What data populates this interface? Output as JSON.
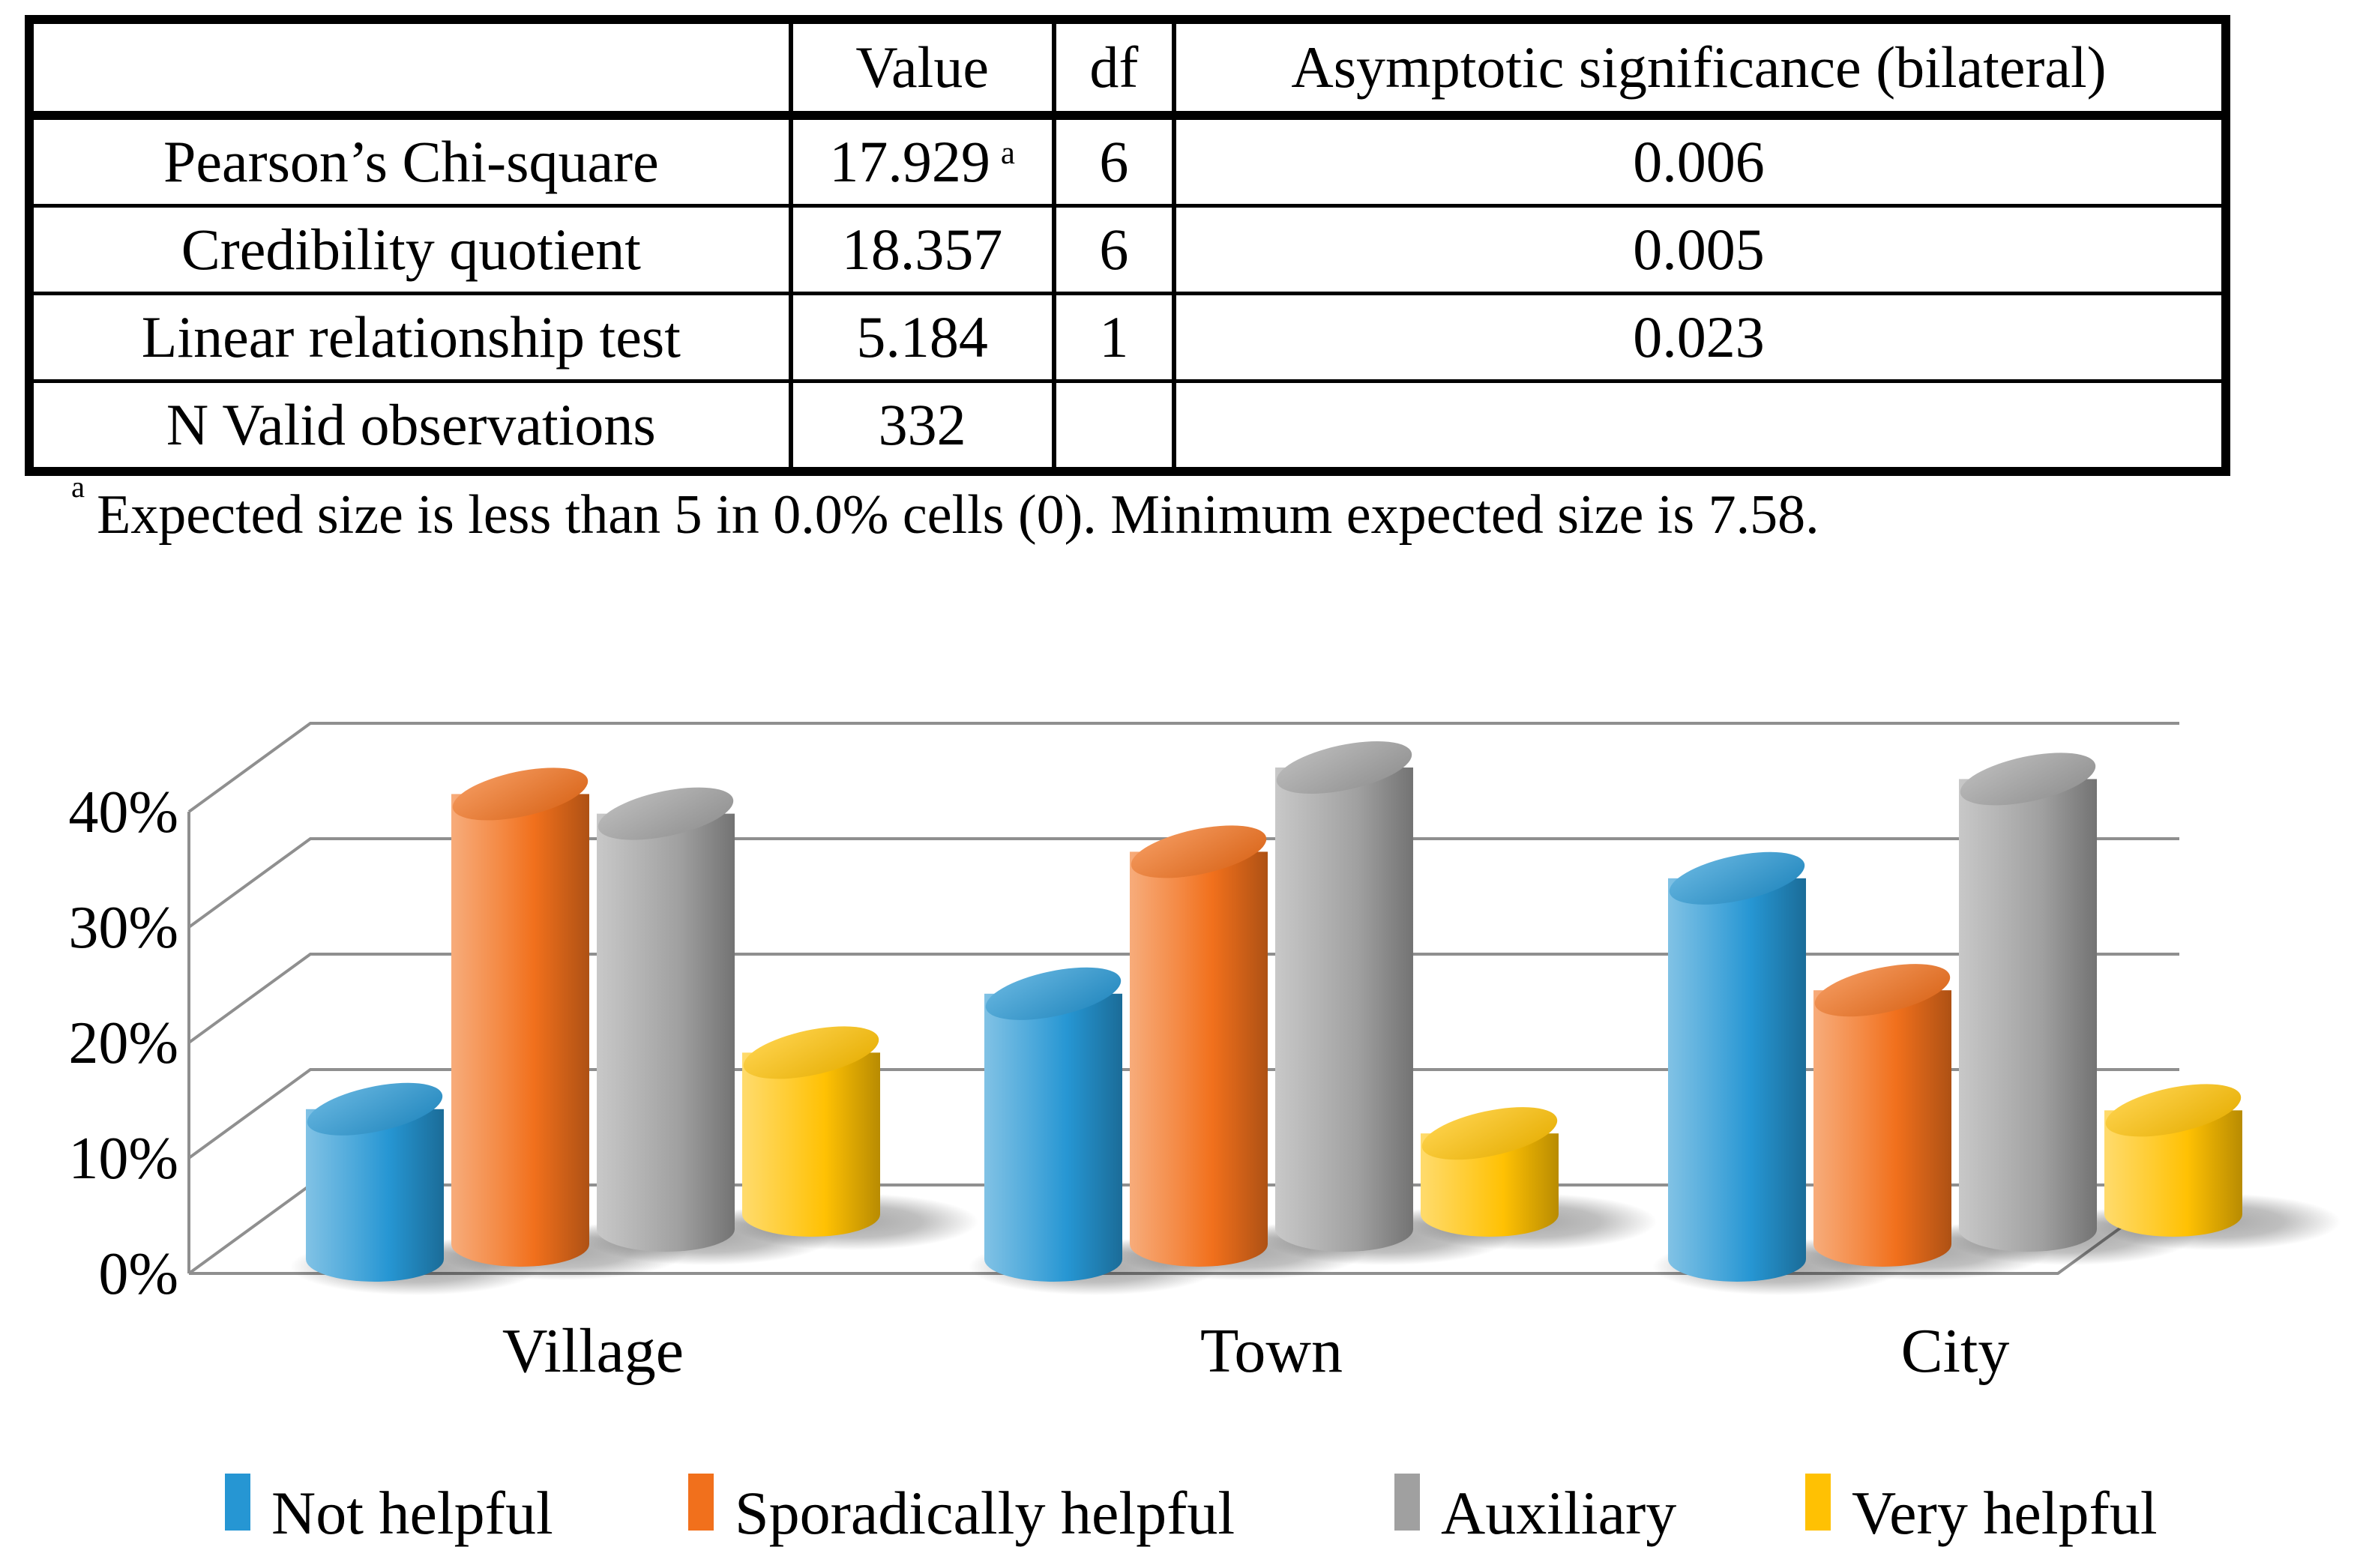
{
  "table": {
    "headers": [
      "",
      "Value",
      "df",
      "Asymptotic significance (bilateral)"
    ],
    "rows": [
      {
        "label": "Pearson’s Chi-square",
        "value": "17.929",
        "value_sup": "a",
        "df": "6",
        "sig": "0.006"
      },
      {
        "label": "Credibility quotient",
        "value": "18.357",
        "value_sup": "",
        "df": "6",
        "sig": "0.005"
      },
      {
        "label": "Linear relationship test",
        "value": "5.184",
        "value_sup": "",
        "df": "1",
        "sig": "0.023"
      },
      {
        "label": "N Valid observations",
        "value": "332",
        "value_sup": "",
        "df": "",
        "sig": ""
      }
    ]
  },
  "footnote": {
    "marker": "a",
    "text": "Expected size is less than 5 in 0.0% cells (0). Minimum expected size is 7.58."
  },
  "chart_data": {
    "type": "bar",
    "subtype": "3d-cylinder",
    "categories": [
      "Village",
      "Town",
      "City"
    ],
    "series": [
      {
        "name": "Not helpful",
        "color": "#2696D3",
        "values": [
          13,
          23,
          33
        ]
      },
      {
        "name": "Sporadically helpful",
        "color": "#F1701C",
        "values": [
          39,
          34,
          22
        ]
      },
      {
        "name": "Auxiliary",
        "color": "#A0A0A0",
        "values": [
          36,
          40,
          39
        ]
      },
      {
        "name": "Very helpful",
        "color": "#FFC103",
        "values": [
          14,
          7,
          9
        ]
      }
    ],
    "yticks": [
      {
        "value": 0,
        "label": "0%"
      },
      {
        "value": 10,
        "label": "10%"
      },
      {
        "value": 20,
        "label": "20%"
      },
      {
        "value": 30,
        "label": "30%"
      },
      {
        "value": 40,
        "label": "40%"
      }
    ],
    "ylim": [
      0,
      40
    ],
    "xlabel": "",
    "ylabel": "",
    "grid": true,
    "legend_position": "bottom",
    "gridline_color": "#8f8f8f"
  }
}
